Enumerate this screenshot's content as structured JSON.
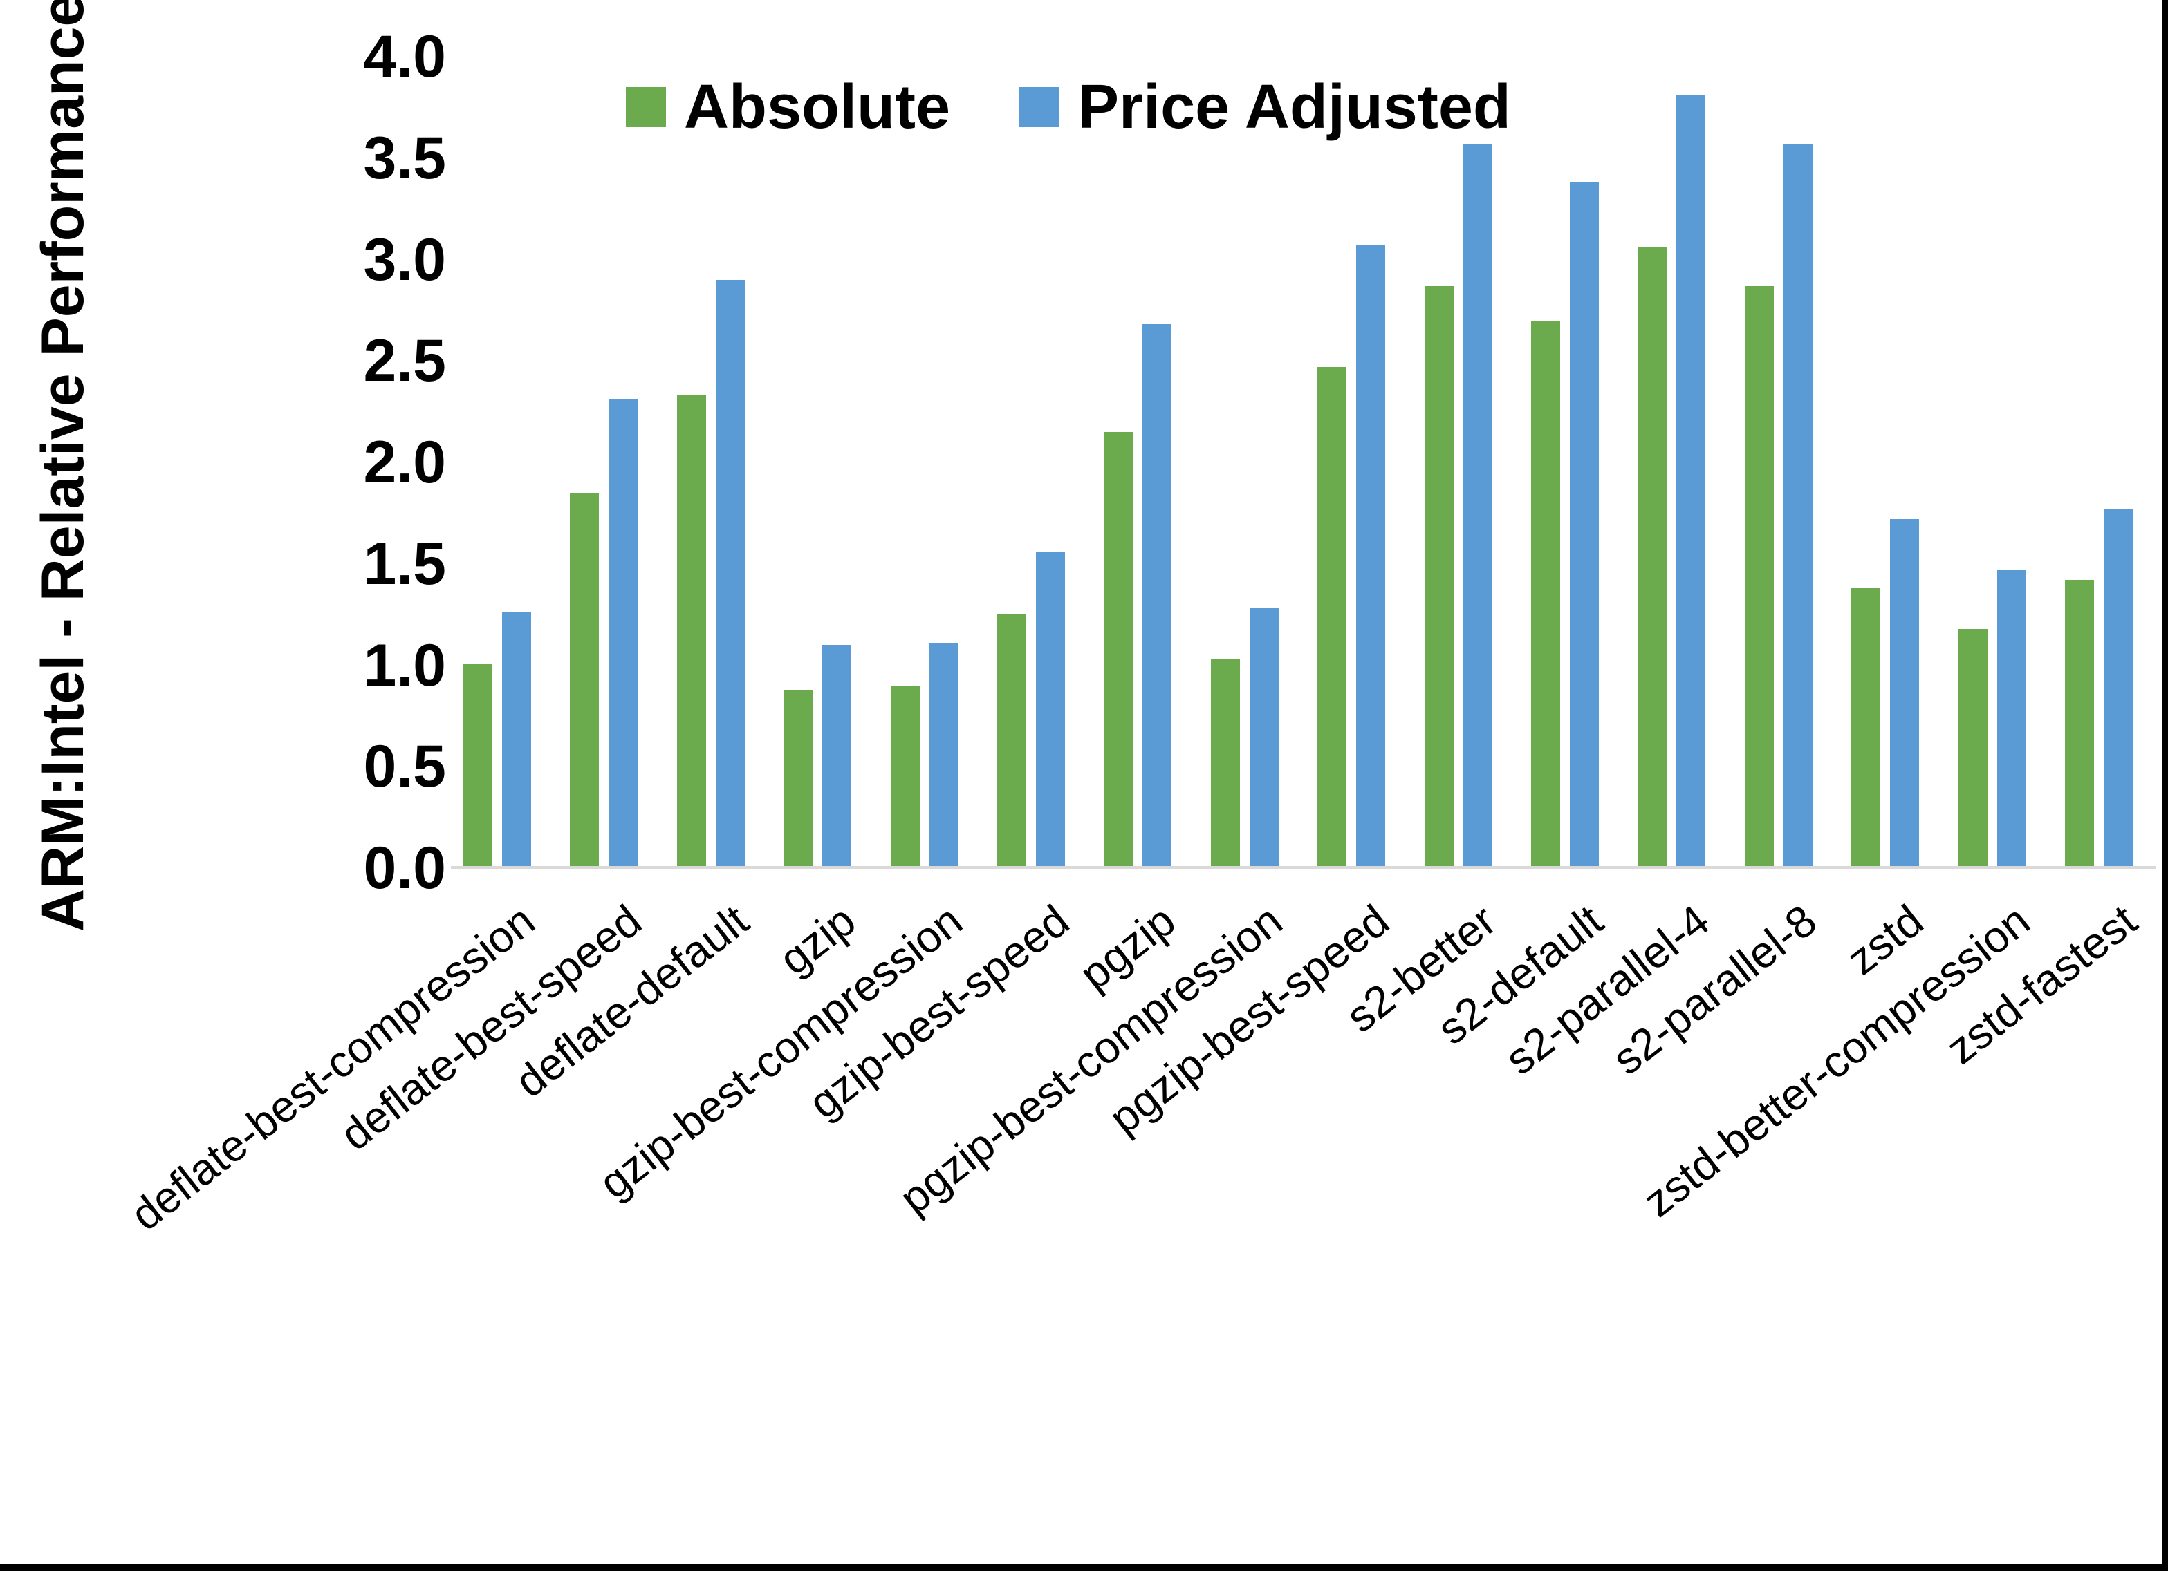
{
  "chart_data": {
    "type": "bar",
    "title": "",
    "xlabel": "",
    "ylabel": "ARM:Intel - Relative Performance",
    "ylim": [
      0.0,
      4.0
    ],
    "ytick_step": 0.5,
    "yticks": [
      "4.0",
      "3.5",
      "3.0",
      "2.5",
      "2.0",
      "1.5",
      "1.0",
      "0.5",
      "0.0"
    ],
    "grid": false,
    "legend_position": "top-inside",
    "categories": [
      "deflate-best-compression",
      "deflate-best-speed",
      "deflate-default",
      "gzip",
      "gzip-best-compression",
      "gzip-best-speed",
      "pgzip",
      "pgzip-best-compression",
      "pgzip-best-speed",
      "s2-better",
      "s2-default",
      "s2-parallel-4",
      "s2-parallel-8",
      "zstd",
      "zstd-better-compression",
      "zstd-fastest"
    ],
    "series": [
      {
        "name": "Absolute",
        "color": "#6BAB4D",
        "values": [
          1.01,
          1.85,
          2.33,
          0.88,
          0.9,
          1.25,
          2.15,
          1.03,
          2.47,
          2.87,
          2.7,
          3.06,
          2.87,
          1.38,
          1.18,
          1.42
        ]
      },
      {
        "name": "Price Adjusted",
        "color": "#5B9BD5",
        "values": [
          1.26,
          2.31,
          2.9,
          1.1,
          1.11,
          1.56,
          2.68,
          1.28,
          3.07,
          3.57,
          3.38,
          3.81,
          3.57,
          1.72,
          1.47,
          1.77
        ]
      }
    ]
  },
  "colors": {
    "axis_line": "#D9D9D9",
    "text": "#000000",
    "frame_border": "#000000",
    "background": "#FFFFFF"
  }
}
